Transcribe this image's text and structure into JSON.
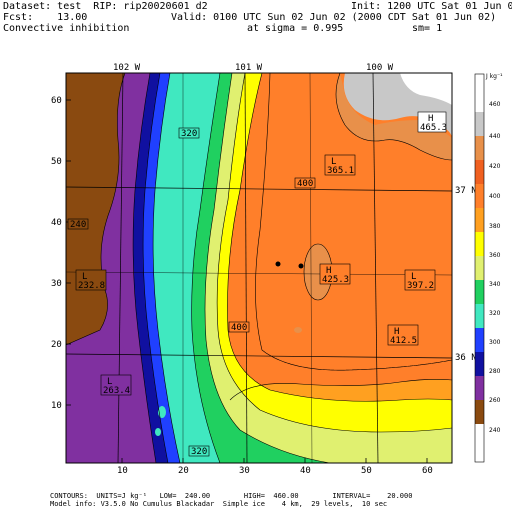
{
  "header": {
    "dataset": "Dataset: test  RIP: rip20020601 d2",
    "init": "Init: 1200 UTC Sat 01 Jun 02",
    "fcst": "Fcst:    13.00",
    "valid": "Valid: 0100 UTC Sun 02 Jun 02 (2000 CDT Sat 01 Jun 02)",
    "field": "Convective inhibition",
    "sigma": "at sigma = 0.995",
    "sm": "sm= 1"
  },
  "map": {
    "lon_labels": [
      "102 W",
      "101 W",
      "100 W"
    ],
    "lat_labels": [
      "37 N",
      "36 N"
    ],
    "x_ticks": [
      "10",
      "20",
      "30",
      "40",
      "50",
      "60"
    ],
    "y_ticks": [
      "10",
      "20",
      "30",
      "40",
      "50",
      "60"
    ],
    "contour_labels": [
      "320",
      "240",
      "400",
      "400",
      "320"
    ],
    "extrema": [
      {
        "type": "H",
        "value": "465.3"
      },
      {
        "type": "L",
        "value": "365.1"
      },
      {
        "type": "L",
        "value": "232.8"
      },
      {
        "type": "H",
        "value": "425.3"
      },
      {
        "type": "L",
        "value": "397.2"
      },
      {
        "type": "H",
        "value": "412.5"
      },
      {
        "type": "L",
        "value": "263.4"
      }
    ]
  },
  "colorbar": {
    "units": "J kg⁻¹",
    "labels": [
      "460",
      "440",
      "420",
      "400",
      "380",
      "360",
      "340",
      "320",
      "300",
      "280",
      "260",
      "240"
    ],
    "colors": [
      "#ffffff",
      "#c8c8c8",
      "#e8904a",
      "#f06020",
      "#ff7f2a",
      "#ffa020",
      "#ffff00",
      "#e0f070",
      "#40e8c0",
      "#2040ff",
      "#1010a0",
      "#8030a0",
      "#8a4a10",
      "#ffffff"
    ]
  },
  "footer": {
    "line1": "CONTOURS:  UNITS=J kg⁻¹   LOW=  240.00        HIGH=  460.00        INTERVAL=    20.000",
    "line2": "Model info: V3.5.0 No Cumulus Blackadar  Simple ice    4 km,  29 levels,  10 sec"
  }
}
